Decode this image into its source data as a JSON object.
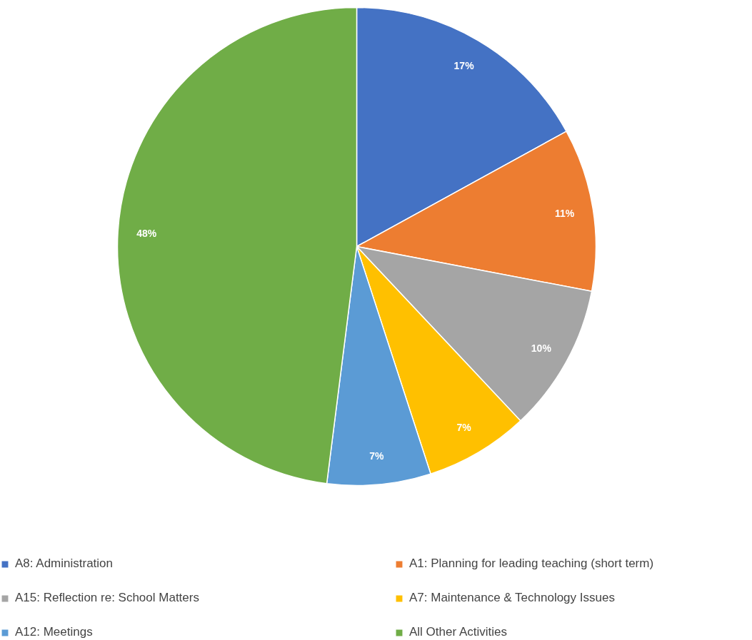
{
  "chart_data": {
    "type": "pie",
    "categories": [
      "A8: Administration",
      "A1: Planning for leading teaching (short term)",
      "A15: Reflection re: School Matters",
      "A7: Maintenance & Technology Issues",
      "A12: Meetings",
      "All Other Activities"
    ],
    "values": [
      17,
      11,
      10,
      7,
      7,
      48
    ],
    "colors": [
      "#4472c4",
      "#ed7d31",
      "#a5a5a5",
      "#ffc000",
      "#5b9bd5",
      "#70ad47"
    ],
    "value_labels": [
      "17%",
      "11%",
      "10%",
      "7%",
      "7%",
      "48%"
    ],
    "legend": "bottom"
  }
}
